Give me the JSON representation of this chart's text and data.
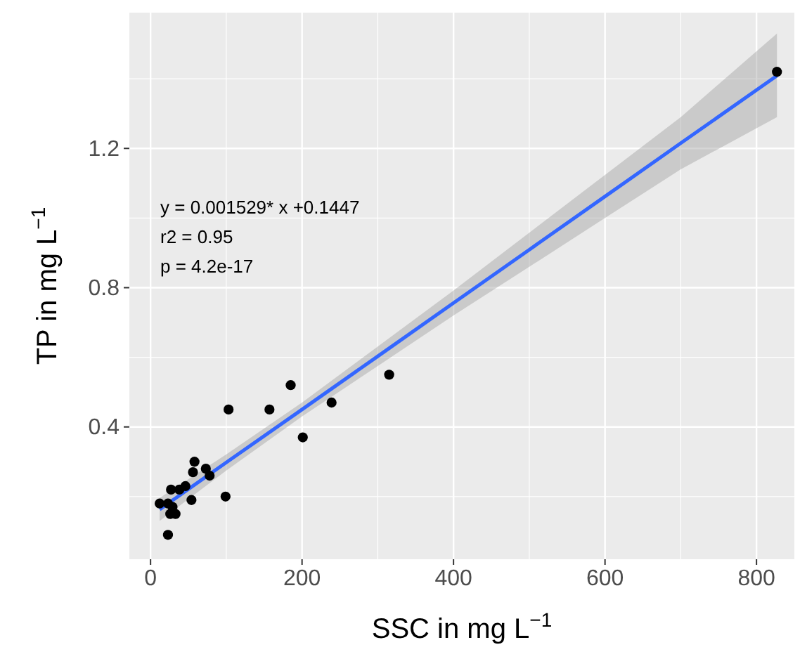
{
  "chart_data": {
    "type": "scatter",
    "xlabel": "SSC in mg L$^{−1}$",
    "ylabel": "TP in mg L$^{−1}$",
    "xlim": [
      -28,
      850
    ],
    "ylim": [
      0.02,
      1.59
    ],
    "xticks": [
      0,
      200,
      400,
      600,
      800
    ],
    "yticks": [
      0.4,
      0.8,
      1.2
    ],
    "grid": true,
    "annotations": [
      "y = 0.001529* x +0.1447",
      "r2 = 0.95",
      "p = 4.2e-17"
    ],
    "series": [
      {
        "marker": "circle",
        "color": "#000000",
        "x": [
          827,
          315,
          239,
          185,
          201,
          157,
          103,
          99,
          58,
          56,
          73,
          78,
          54,
          46,
          38,
          27,
          12,
          23,
          26,
          33,
          29,
          23
        ],
        "values": [
          1.42,
          0.55,
          0.47,
          0.52,
          0.37,
          0.45,
          0.45,
          0.2,
          0.3,
          0.27,
          0.28,
          0.26,
          0.19,
          0.23,
          0.22,
          0.22,
          0.18,
          0.09,
          0.15,
          0.15,
          0.17,
          0.18
        ]
      },
      {
        "type": "line",
        "marker": "none",
        "color": "#3366ff",
        "x": [
          12,
          100,
          200,
          300,
          400,
          500,
          600,
          700,
          827
        ],
        "values": [
          0.163,
          0.298,
          0.45,
          0.603,
          0.756,
          0.909,
          1.062,
          1.215,
          1.409
        ],
        "lower": [
          0.13,
          0.275,
          0.43,
          0.575,
          0.72,
          0.86,
          1.0,
          1.14,
          1.29
        ],
        "upper": [
          0.196,
          0.321,
          0.47,
          0.631,
          0.792,
          0.958,
          1.124,
          1.29,
          1.53
        ]
      }
    ]
  }
}
